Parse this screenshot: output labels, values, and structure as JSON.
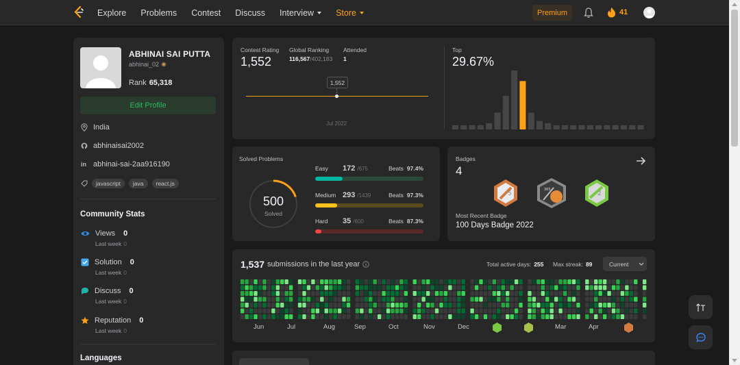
{
  "nav": {
    "links": [
      "Explore",
      "Problems",
      "Contest",
      "Discuss",
      "Interview",
      "Store"
    ],
    "premium": "Premium",
    "streak": "41"
  },
  "profile": {
    "name": "ABHINAI SAI PUTTA",
    "handle": "abhinai_02",
    "rank_label": "Rank",
    "rank": "65,318",
    "edit": "Edit Profile",
    "location": "India",
    "github": "abhinaisai2002",
    "linkedin": "abhinai-sai-2aa916190",
    "skills": [
      "javascript",
      "java",
      "react.js"
    ]
  },
  "community": {
    "title": "Community Stats",
    "items": [
      {
        "label": "Views",
        "value": "0",
        "sub": "Last week",
        "delta": "0",
        "color": "#2e8de6"
      },
      {
        "label": "Solution",
        "value": "0",
        "sub": "Last week",
        "delta": "0",
        "color": "#44a7f0"
      },
      {
        "label": "Discuss",
        "value": "0",
        "sub": "Last week",
        "delta": "0",
        "color": "#20b2aa"
      },
      {
        "label": "Reputation",
        "value": "0",
        "sub": "Last week",
        "delta": "0",
        "color": "#ffa116"
      }
    ],
    "languages": "Languages"
  },
  "contest": {
    "rating_label": "Contest Rating",
    "rating": "1,552",
    "global_label": "Global Ranking",
    "global": "116,567",
    "global_total": "/402,183",
    "attended_label": "Attended",
    "attended": "1",
    "tooltip": "1,552",
    "date": "Jul 2022",
    "top_label": "Top",
    "top": "29.67%",
    "histogram": [
      2,
      2,
      2,
      2,
      3,
      8,
      16,
      28,
      23,
      8,
      4,
      3,
      2,
      2,
      2,
      2,
      2,
      2,
      2,
      2,
      2,
      2,
      2,
      2
    ],
    "hist_highlight": 8
  },
  "solved": {
    "title": "Solved Problems",
    "total": "500",
    "total_label": "Solved",
    "total_count": 500,
    "ring_fraction": 0.2,
    "rows": [
      {
        "label": "Easy",
        "n": "172",
        "of": "/675",
        "beats_label": "Beats",
        "beats": "97.4%",
        "fraction": 0.255,
        "fg": "#00b8a3",
        "bg": "#2a4a3a"
      },
      {
        "label": "Medium",
        "n": "293",
        "of": "/1439",
        "beats_label": "Beats",
        "beats": "97.3%",
        "fraction": 0.204,
        "fg": "#ffc01e",
        "bg": "#5a4a20"
      },
      {
        "label": "Hard",
        "n": "35",
        "of": "/600",
        "beats_label": "Beats",
        "beats": "87.3%",
        "fraction": 0.058,
        "fg": "#ef4743",
        "bg": "#5a2a2a"
      }
    ]
  },
  "badges": {
    "title": "Badges",
    "count": "4",
    "recent_label": "Most Recent Badge",
    "recent": "100 Days Badge 2022"
  },
  "submissions": {
    "count": "1,537",
    "label": "submissions in the last year",
    "active_label": "Total active days:",
    "active": "255",
    "streak_label": "Max streak:",
    "streak": "89",
    "select": "Current",
    "months": [
      "Jun",
      "Jul",
      "Aug",
      "Sep",
      "Oct",
      "Nov",
      "Dec",
      "",
      "",
      "Mar",
      "Apr",
      ""
    ]
  }
}
